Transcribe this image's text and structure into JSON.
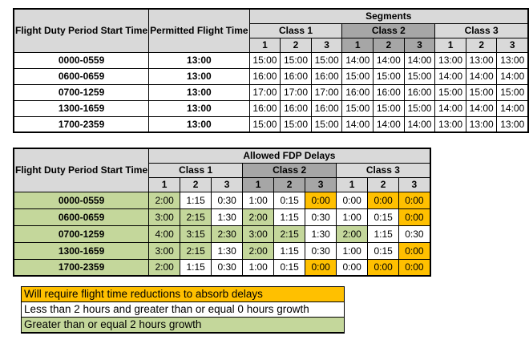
{
  "palette": {
    "header_gray": "#D9D9D9",
    "class2_dark_gray": "#A6A6A6",
    "growth_green": "#C4D79B",
    "reduction_orange": "#FFC000",
    "border_black": "#000000"
  },
  "table1": {
    "corner_header": "Flight Duty Period Start Time",
    "permitted_header": "Permitted Flight Time",
    "segments_header": "Segments",
    "class_headers": [
      "Class 1",
      "Class 2",
      "Class 3"
    ],
    "segment_numbers": [
      "1",
      "2",
      "3",
      "1",
      "2",
      "3",
      "1",
      "2",
      "3"
    ],
    "rows": [
      {
        "label": "0000-0559",
        "permitted": "13:00",
        "values": [
          "15:00",
          "15:00",
          "15:00",
          "14:00",
          "14:00",
          "14:00",
          "13:00",
          "13:00",
          "13:00"
        ]
      },
      {
        "label": "0600-0659",
        "permitted": "13:00",
        "values": [
          "16:00",
          "16:00",
          "16:00",
          "15:00",
          "15:00",
          "15:00",
          "14:00",
          "14:00",
          "14:00"
        ]
      },
      {
        "label": "0700-1259",
        "permitted": "13:00",
        "values": [
          "17:00",
          "17:00",
          "17:00",
          "16:00",
          "16:00",
          "16:00",
          "15:00",
          "15:00",
          "15:00"
        ]
      },
      {
        "label": "1300-1659",
        "permitted": "13:00",
        "values": [
          "16:00",
          "16:00",
          "16:00",
          "15:00",
          "15:00",
          "15:00",
          "14:00",
          "14:00",
          "14:00"
        ]
      },
      {
        "label": "1700-2359",
        "permitted": "13:00",
        "values": [
          "15:00",
          "15:00",
          "15:00",
          "14:00",
          "14:00",
          "14:00",
          "13:00",
          "13:00",
          "13:00"
        ]
      }
    ]
  },
  "table2": {
    "corner_header": "Flight Duty Period Start Time",
    "title": "Allowed FDP Delays",
    "class_headers": [
      "Class 1",
      "Class 2",
      "Class 3"
    ],
    "segment_numbers": [
      "1",
      "2",
      "3",
      "1",
      "2",
      "3",
      "1",
      "2",
      "3"
    ],
    "rows": [
      {
        "label": "0000-0559",
        "values": [
          "2:00",
          "1:15",
          "0:30",
          "1:00",
          "0:15",
          "0:00",
          "0:00",
          "0:00",
          "0:00"
        ],
        "colors": [
          "g",
          "w",
          "w",
          "w",
          "w",
          "o",
          "w",
          "o",
          "o"
        ]
      },
      {
        "label": "0600-0659",
        "values": [
          "3:00",
          "2:15",
          "1:30",
          "2:00",
          "1:15",
          "0:30",
          "1:00",
          "0:15",
          "0:00"
        ],
        "colors": [
          "g",
          "g",
          "w",
          "g",
          "w",
          "w",
          "w",
          "w",
          "o"
        ]
      },
      {
        "label": "0700-1259",
        "values": [
          "4:00",
          "3:15",
          "2:30",
          "3:00",
          "2:15",
          "1:30",
          "2:00",
          "1:15",
          "0:30"
        ],
        "colors": [
          "g",
          "g",
          "g",
          "g",
          "g",
          "w",
          "g",
          "w",
          "w"
        ]
      },
      {
        "label": "1300-1659",
        "values": [
          "3:00",
          "2:15",
          "1:30",
          "2:00",
          "1:15",
          "0:30",
          "1:00",
          "0:15",
          "0:00"
        ],
        "colors": [
          "g",
          "g",
          "w",
          "g",
          "w",
          "w",
          "w",
          "w",
          "o"
        ]
      },
      {
        "label": "1700-2359",
        "values": [
          "2:00",
          "1:15",
          "0:30",
          "1:00",
          "0:15",
          "0:00",
          "0:00",
          "0:00",
          "0:00"
        ],
        "colors": [
          "g",
          "w",
          "w",
          "w",
          "w",
          "o",
          "w",
          "o",
          "o"
        ]
      }
    ]
  },
  "legend": {
    "items": [
      {
        "label": "Will require flight time reductions to absorb delays",
        "color": "o"
      },
      {
        "label": "Less than 2 hours and greater than or equal 0 hours growth",
        "color": "w"
      },
      {
        "label": "Greater than or equal 2 hours growth",
        "color": "g"
      }
    ]
  }
}
